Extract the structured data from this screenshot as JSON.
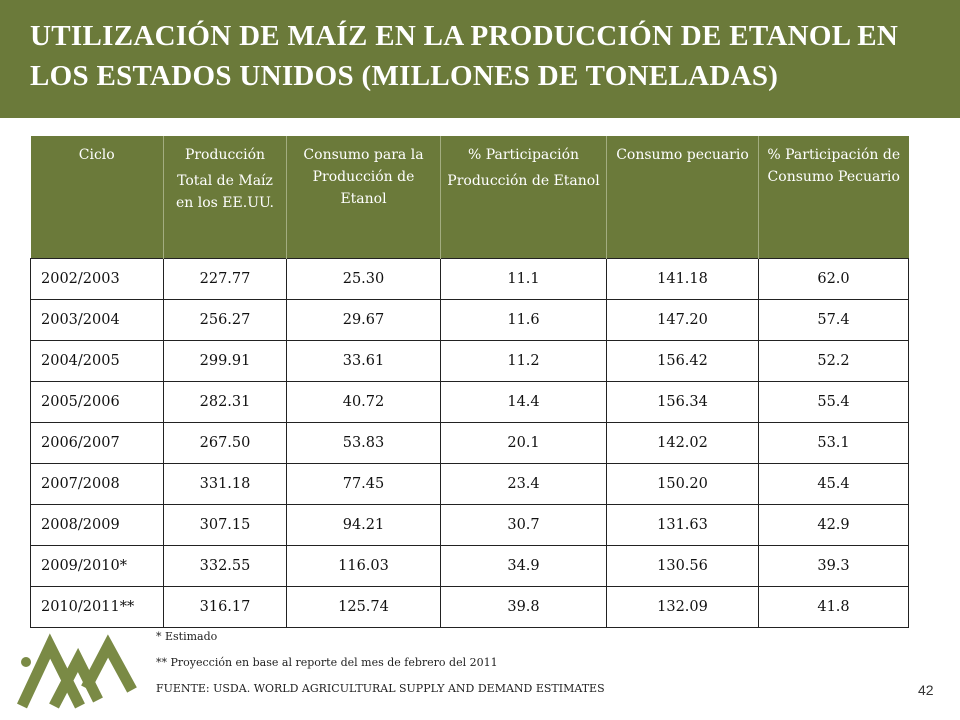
{
  "title": "UTILIZACIÓN DE MAÍZ EN LA PRODUCCIÓN DE ETANOL EN LOS ESTADOS UNIDOS (MILLONES DE TONELADAS)",
  "table": {
    "headers": [
      {
        "l1": "Ciclo",
        "l2": ""
      },
      {
        "l1": "Producción",
        "l2": "Total de Maíz en los EE.UU."
      },
      {
        "l1": "Consumo para la Producción de Etanol",
        "l2": ""
      },
      {
        "l1": "% Participación",
        "l2": "Producción de Etanol"
      },
      {
        "l1": "Consumo pecuario",
        "l2": ""
      },
      {
        "l1": "% Participación de Consumo Pecuario",
        "l2": ""
      }
    ],
    "rows": [
      [
        "2002/2003",
        "227.77",
        "25.30",
        "11.1",
        "141.18",
        "62.0"
      ],
      [
        "2003/2004",
        "256.27",
        "29.67",
        "11.6",
        "147.20",
        "57.4"
      ],
      [
        "2004/2005",
        "299.91",
        "33.61",
        "11.2",
        "156.42",
        "52.2"
      ],
      [
        "2005/2006",
        "282.31",
        "40.72",
        "14.4",
        "156.34",
        "55.4"
      ],
      [
        "2006/2007",
        "267.50",
        "53.83",
        "20.1",
        "142.02",
        "53.1"
      ],
      [
        "2007/2008",
        "331.18",
        "77.45",
        "23.4",
        "150.20",
        "45.4"
      ],
      [
        "2008/2009",
        "307.15",
        "94.21",
        "30.7",
        "131.63",
        "42.9"
      ],
      [
        "2009/2010*",
        "332.55",
        "116.03",
        "34.9",
        "130.56",
        "39.3"
      ],
      [
        "2010/2011**",
        "316.17",
        "125.74",
        "39.8",
        "132.09",
        "41.8"
      ]
    ]
  },
  "notes": [
    "* Estimado",
    "** Proyección en base al reporte del mes de febrero del 2011",
    "FUENTE: USDA. WORLD AGRICULTURAL SUPPLY AND DEMAND ESTIMATES"
  ],
  "page_number": "42",
  "colors": {
    "header_bg": "#6b7a3a",
    "logo": "#7a8a45"
  }
}
